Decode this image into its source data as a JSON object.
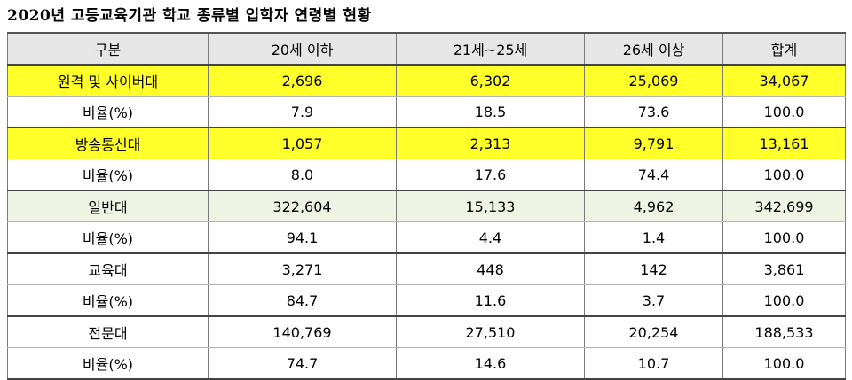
{
  "title": "2020년 고등교육기관 학교 종류별 입학자 연령별 현황",
  "headers": [
    "구분",
    "20세 이하",
    "21세~25세",
    "26세 이상",
    "합계"
  ],
  "rows": [
    [
      "원격 및 사이버대",
      "2,696",
      "6,302",
      "25,069",
      "34,067"
    ],
    [
      "비율(%)",
      "7.9",
      "18.5",
      "73.6",
      "100.0"
    ],
    [
      "방송통신대",
      "1,057",
      "2,313",
      "9,791",
      "13,161"
    ],
    [
      "비율(%)",
      "8.0",
      "17.6",
      "74.4",
      "100.0"
    ],
    [
      "일반대",
      "322,604",
      "15,133",
      "4,962",
      "342,699"
    ],
    [
      "비율(%)",
      "94.1",
      "4.4",
      "1.4",
      "100.0"
    ],
    [
      "교육대",
      "3,271",
      "448",
      "142",
      "3,861"
    ],
    [
      "비율(%)",
      "84.7",
      "11.6",
      "3.7",
      "100.0"
    ],
    [
      "전문대",
      "140,769",
      "27,510",
      "20,254",
      "188,533"
    ],
    [
      "비율(%)",
      "74.7",
      "14.6",
      "10.7",
      "100.0"
    ]
  ],
  "highlight_colors": {
    "yellow": "#ffff29",
    "green": "#eef3e4",
    "header": "#e6e6e6"
  }
}
